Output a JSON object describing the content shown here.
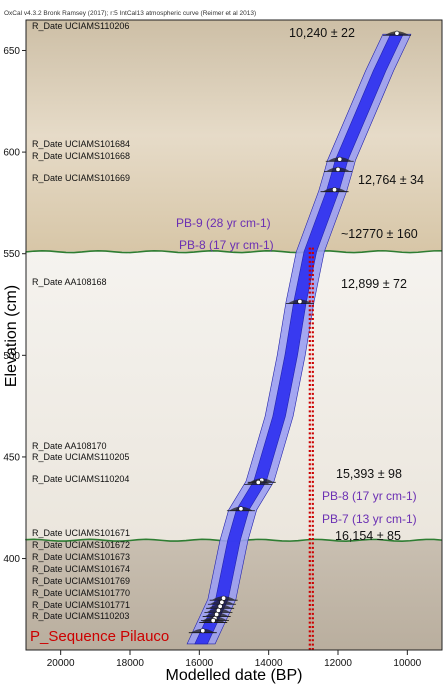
{
  "header": "OxCal v4.3.2 Bronk Ramsey (2017); r:5 IntCal13 atmospheric curve (Reimer et al 2013)",
  "chart_data": {
    "type": "scatter",
    "title": "",
    "xlabel": "Modelled date (BP)",
    "ylabel": "Elevation (cm)",
    "xlim": [
      21000,
      9000
    ],
    "ylim": [
      355,
      665
    ],
    "x_reversed": true,
    "x_ticks": [
      20000,
      18000,
      16000,
      14000,
      12000,
      10000
    ],
    "y_ticks": [
      400,
      450,
      500,
      550,
      600,
      650
    ],
    "grid": false,
    "sequence_label": "P_Sequence Pilauco",
    "colors": {
      "envelope_outer": "#9b9ff2",
      "envelope_inner": "#2c2ff0",
      "boundary_line": "#2e7d32",
      "dotted_line": "#cc0000",
      "pb_label": "#6b2fb3",
      "sequence_label": "#cc0000",
      "top_layer": "#d9cbb1",
      "middle_layer": "#f2efea",
      "bottom_layer": "#c4baab"
    },
    "dates": [
      {
        "label": "R_Date UCIAMS110206",
        "x": 10300,
        "y": 658
      },
      {
        "label": "R_Date UCIAMS101684",
        "x": 11950,
        "y": 596
      },
      {
        "label": "R_Date UCIAMS101668",
        "x": 12000,
        "y": 591
      },
      {
        "label": "R_Date UCIAMS101669",
        "x": 12100,
        "y": 581
      },
      {
        "label": "R_Date AA108168",
        "x": 13100,
        "y": 526
      },
      {
        "label": "R_Date AA108170",
        "x": 14200,
        "y": 438
      },
      {
        "label": "R_Date UCIAMS110205",
        "x": 14300,
        "y": 437
      },
      {
        "label": "R_Date UCIAMS110204",
        "x": 14800,
        "y": 424
      },
      {
        "label": "R_Date UCIAMS101671",
        "x": 15300,
        "y": 380
      },
      {
        "label": "R_Date UCIAMS101672",
        "x": 15350,
        "y": 378
      },
      {
        "label": "R_Date UCIAMS101673",
        "x": 15400,
        "y": 376
      },
      {
        "label": "R_Date UCIAMS101674",
        "x": 15450,
        "y": 374
      },
      {
        "label": "R_Date UCIAMS101769",
        "x": 15500,
        "y": 372
      },
      {
        "label": "R_Date UCIAMS101770",
        "x": 15550,
        "y": 370
      },
      {
        "label": "R_Date UCIAMS101771",
        "x": 15600,
        "y": 369
      },
      {
        "label": "R_Date UCIAMS110203",
        "x": 15900,
        "y": 364
      }
    ],
    "annotations": [
      {
        "text": "10,240 ± 22"
      },
      {
        "text": "12,764 ± 34"
      },
      {
        "text": "~12770 ± 160"
      },
      {
        "text": "12,899 ± 72"
      },
      {
        "text": "15,393 ± 98"
      },
      {
        "text": "16,154 ± 85"
      }
    ],
    "boundaries": [
      {
        "y": 551,
        "upper": "PB-9 (28 yr cm-1)",
        "lower": "PB-8 (17 yr cm-1)"
      },
      {
        "y": 409,
        "upper": "PB-8 (17 yr cm-1)",
        "lower": "PB-7 (13 yr cm-1)"
      }
    ],
    "dotted_line_x": 12770
  }
}
